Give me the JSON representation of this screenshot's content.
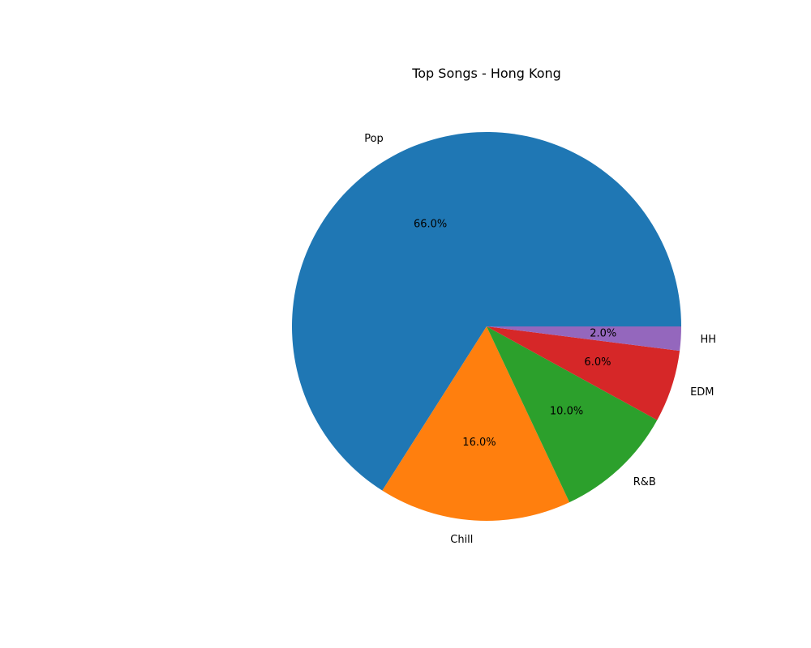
{
  "chart_data": {
    "type": "pie",
    "title": "Top Songs - Hong Kong",
    "categories": [
      "Pop",
      "Chill",
      "R&B",
      "EDM",
      "HH"
    ],
    "values": [
      66.0,
      16.0,
      10.0,
      6.0,
      2.0
    ],
    "percent_labels": [
      "66.0%",
      "16.0%",
      "10.0%",
      "6.0%",
      "2.0%"
    ],
    "colors": [
      "#1f77b4",
      "#ff7f0e",
      "#2ca02c",
      "#d62728",
      "#9467bd"
    ],
    "start_angle_deg": 0,
    "direction": "counterclockwise",
    "legend": "none"
  }
}
